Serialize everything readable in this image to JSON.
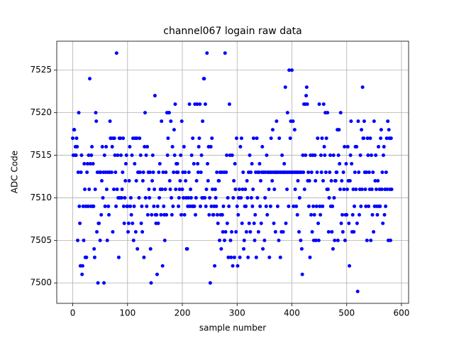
{
  "chart_data": {
    "type": "scatter",
    "title": "channel067 logain raw data",
    "x_label": "sample number",
    "y_label": "ADC Code",
    "color": "#0000ff",
    "grid": true,
    "xlim": [
      -29.2,
      613
    ],
    "ylim": [
      7497.6,
      7528.4
    ],
    "xticks": [
      0,
      100,
      200,
      300,
      400,
      500,
      600
    ],
    "yticks": [
      7500,
      7505,
      7510,
      7515,
      7520,
      7525
    ],
    "x": [
      0,
      1,
      2,
      3,
      4,
      5,
      6,
      7,
      8,
      9,
      10,
      11,
      12,
      13,
      14,
      15,
      16,
      17,
      18,
      19,
      20,
      21,
      22,
      23,
      24,
      25,
      26,
      27,
      28,
      29,
      30,
      31,
      32,
      33,
      34,
      35,
      36,
      37,
      38,
      39,
      40,
      41,
      42,
      43,
      44,
      45,
      46,
      47,
      48,
      49,
      50,
      51,
      52,
      53,
      54,
      55,
      56,
      57,
      58,
      59,
      60,
      61,
      62,
      63,
      64,
      65,
      66,
      67,
      68,
      69,
      70,
      71,
      72,
      73,
      74,
      75,
      76,
      77,
      78,
      79,
      80,
      81,
      82,
      83,
      84,
      85,
      86,
      87,
      88,
      89,
      90,
      91,
      92,
      93,
      94,
      95,
      96,
      97,
      98,
      99,
      100,
      101,
      102,
      103,
      104,
      105,
      106,
      107,
      108,
      109,
      110,
      111,
      112,
      113,
      114,
      115,
      116,
      117,
      118,
      119,
      120,
      121,
      122,
      123,
      124,
      125,
      126,
      127,
      128,
      129,
      130,
      131,
      132,
      133,
      134,
      135,
      136,
      137,
      138,
      139,
      140,
      141,
      142,
      143,
      144,
      145,
      146,
      147,
      148,
      149,
      150,
      151,
      152,
      153,
      154,
      155,
      156,
      157,
      158,
      159,
      160,
      161,
      162,
      163,
      164,
      165,
      166,
      167,
      168,
      169,
      170,
      171,
      172,
      173,
      174,
      175,
      176,
      177,
      178,
      179,
      180,
      181,
      182,
      183,
      184,
      185,
      186,
      187,
      188,
      189,
      190,
      191,
      192,
      193,
      194,
      195,
      196,
      197,
      198,
      199,
      200,
      201,
      202,
      203,
      204,
      205,
      206,
      207,
      208,
      209,
      210,
      211,
      212,
      213,
      214,
      215,
      216,
      217,
      218,
      219,
      220,
      221,
      222,
      223,
      224,
      225,
      226,
      227,
      228,
      229,
      230,
      231,
      232,
      233,
      234,
      235,
      236,
      237,
      238,
      239,
      240,
      241,
      242,
      243,
      244,
      245,
      246,
      247,
      248,
      249,
      250,
      251,
      252,
      253,
      254,
      255,
      256,
      257,
      258,
      259,
      260,
      261,
      262,
      263,
      264,
      265,
      266,
      267,
      268,
      269,
      270,
      271,
      272,
      273,
      274,
      275,
      276,
      277,
      278,
      279,
      280,
      281,
      282,
      283,
      284,
      285,
      286,
      287,
      288,
      289,
      290,
      291,
      292,
      293,
      294,
      295,
      296,
      297,
      298,
      299,
      300,
      301,
      302,
      303,
      304,
      305,
      306,
      307,
      308,
      309,
      310,
      311,
      312,
      313,
      314,
      315,
      316,
      317,
      318,
      319,
      320,
      321,
      322,
      323,
      324,
      325,
      326,
      327,
      328,
      329,
      330,
      331,
      332,
      333,
      334,
      335,
      336,
      337,
      338,
      339,
      340,
      341,
      342,
      343,
      344,
      345,
      346,
      347,
      348,
      349,
      350,
      351,
      352,
      353,
      354,
      355,
      356,
      357,
      358,
      359,
      360,
      361,
      362,
      363,
      364,
      365,
      366,
      367,
      368,
      369,
      370,
      371,
      372,
      373,
      374,
      375,
      376,
      377,
      378,
      379,
      380,
      381,
      382,
      383,
      384,
      385,
      386,
      387,
      388,
      389,
      390,
      391,
      392,
      393,
      394,
      395,
      396,
      397,
      398,
      399,
      400,
      401,
      402,
      403,
      404,
      405,
      406,
      407,
      408,
      409,
      410,
      411,
      412,
      413,
      414,
      415,
      416,
      417,
      418,
      419,
      420,
      421,
      422,
      423,
      424,
      425,
      426,
      427,
      428,
      429,
      430,
      431,
      432,
      433,
      434,
      435,
      436,
      437,
      438,
      439,
      440,
      441,
      442,
      443,
      444,
      445,
      446,
      447,
      448,
      449,
      450,
      451,
      452,
      453,
      454,
      455,
      456,
      457,
      458,
      459,
      460,
      461,
      462,
      463,
      464,
      465,
      466,
      467,
      468,
      469,
      470,
      471,
      472,
      473,
      474,
      475,
      476,
      477,
      478,
      479,
      480,
      481,
      482,
      483,
      484,
      485,
      486,
      487,
      488,
      489,
      490,
      491,
      492,
      493,
      494,
      495,
      496,
      497,
      498,
      499,
      500,
      501,
      502,
      503,
      504,
      505,
      506,
      507,
      508,
      509,
      510,
      511,
      512,
      513,
      514,
      515,
      516,
      517,
      518,
      519,
      520,
      521,
      522,
      523,
      524,
      525,
      526,
      527,
      528,
      529,
      530,
      531,
      532,
      533,
      534,
      535,
      536,
      537,
      538,
      539,
      540,
      541,
      542,
      543,
      544,
      545,
      546,
      547,
      548,
      549,
      550,
      551,
      552,
      553,
      554,
      555,
      556,
      557,
      558,
      559,
      560,
      561,
      562,
      563,
      564,
      565,
      566,
      567,
      568,
      569,
      570,
      571,
      572,
      573,
      574,
      575,
      576,
      577,
      578,
      579,
      580,
      581,
      582
    ],
    "values": [
      7517,
      7515,
      7518,
      7518,
      7515,
      7516,
      7515,
      7517,
      7516,
      7505,
      7513,
      7520,
      7509,
      7507,
      7502,
      7513,
      7515,
      7501,
      7502,
      7509,
      7505,
      7514,
      7511,
      7503,
      7509,
      7503,
      7513,
      7514,
      7509,
      7515,
      7511,
      7524,
      7514,
      7509,
      7515,
      7516,
      7509,
      7514,
      7509,
      7504,
      7503,
      7511,
      7520,
      7519,
      7506,
      7513,
      7500,
      7507,
      7507,
      7513,
      7505,
      7513,
      7508,
      7512,
      7516,
      7510,
      7513,
      7500,
      7515,
      7509,
      7513,
      7516,
      7511,
      7505,
      7513,
      7509,
      7508,
      7513,
      7519,
      7517,
      7517,
      7513,
      7516,
      7506,
      7517,
      7511,
      7517,
      7515,
      7513,
      7509,
      7527,
      7511,
      7515,
      7510,
      7503,
      7517,
      7510,
      7517,
      7515,
      7510,
      7511,
      7513,
      7517,
      7509,
      7507,
      7510,
      7512,
      7514,
      7515,
      7509,
      7509,
      7506,
      7507,
      7512,
      7516,
      7509,
      7510,
      7508,
      7515,
      7507,
      7517,
      7505,
      7509,
      7514,
      7517,
      7506,
      7512,
      7517,
      7504,
      7513,
      7513,
      7510,
      7517,
      7513,
      7515,
      7507,
      7509,
      7506,
      7512,
      7513,
      7503,
      7516,
      7520,
      7510,
      7515,
      7509,
      7516,
      7508,
      7513,
      7511,
      7510,
      7513,
      7504,
      7500,
      7508,
      7512,
      7515,
      7513,
      7509,
      7511,
      7522,
      7508,
      7507,
      7508,
      7501,
      7509,
      7507,
      7513,
      7510,
      7514,
      7511,
      7508,
      7519,
      7511,
      7502,
      7513,
      7509,
      7508,
      7505,
      7511,
      7513,
      7508,
      7520,
      7515,
      7517,
      7520,
      7520,
      7512,
      7511,
      7519,
      7510,
      7508,
      7516,
      7509,
      7513,
      7518,
      7515,
      7521,
      7511,
      7514,
      7513,
      7514,
      7513,
      7509,
      7510,
      7511,
      7512,
      7515,
      7508,
      7519,
      7511,
      7513,
      7510,
      7516,
      7508,
      7513,
      7512,
      7510,
      7504,
      7504,
      7509,
      7510,
      7513,
      7521,
      7509,
      7511,
      7510,
      7515,
      7509,
      7517,
      7509,
      7514,
      7509,
      7521,
      7508,
      7510,
      7512,
      7521,
      7514,
      7513,
      7516,
      7517,
      7521,
      7509,
      7513,
      7515,
      7510,
      7519,
      7510,
      7524,
      7524,
      7510,
      7521,
      7509,
      7511,
      7527,
      7514,
      7512,
      7516,
      7508,
      7510,
      7500,
      7516,
      7509,
      7517,
      7511,
      7508,
      7508,
      7509,
      7502,
      7511,
      7510,
      7509,
      7513,
      7508,
      7507,
      7512,
      7512,
      7505,
      7513,
      7508,
      7504,
      7513,
      7508,
      7506,
      7509,
      7513,
      7505,
      7527,
      7506,
      7513,
      7515,
      7507,
      7510,
      7503,
      7509,
      7521,
      7515,
      7505,
      7503,
      7506,
      7515,
      7502,
      7510,
      7512,
      7503,
      7514,
      7511,
      7506,
      7517,
      7509,
      7502,
      7508,
      7510,
      7511,
      7503,
      7516,
      7510,
      7517,
      7507,
      7511,
      7513,
      7504,
      7505,
      7509,
      7511,
      7509,
      7506,
      7512,
      7510,
      7503,
      7513,
      7507,
      7515,
      7506,
      7513,
      7510,
      7514,
      7509,
      7511,
      7517,
      7507,
      7505,
      7508,
      7513,
      7503,
      7517,
      7510,
      7513,
      7506,
      7513,
      7514,
      7509,
      7512,
      7507,
      7513,
      7516,
      7504,
      7513,
      7513,
      7505,
      7510,
      7513,
      7509,
      7515,
      7508,
      7513,
      7513,
      7511,
      7503,
      7513,
      7509,
      7517,
      7513,
      7512,
      7518,
      7513,
      7507,
      7511,
      7513,
      7506,
      7513,
      7519,
      7513,
      7509,
      7513,
      7505,
      7517,
      7513,
      7503,
      7513,
      7506,
      7515,
      7513,
      7506,
      7513,
      7514,
      7513,
      7523,
      7507,
      7513,
      7511,
      7520,
      7513,
      7509,
      7525,
      7513,
      7517,
      7519,
      7513,
      7525,
      7513,
      7519,
      7509,
      7513,
      7518,
      7511,
      7513,
      7509,
      7513,
      7508,
      7512,
      7513,
      7506,
      7510,
      7513,
      7505,
      7513,
      7504,
      7501,
      7515,
      7513,
      7521,
      7511,
      7521,
      7515,
      7522,
      7523,
      7521,
      7512,
      7513,
      7509,
      7512,
      7503,
      7515,
      7508,
      7513,
      7506,
      7515,
      7509,
      7505,
      7508,
      7515,
      7512,
      7505,
      7509,
      7513,
      7517,
      7507,
      7505,
      7521,
      7509,
      7508,
      7515,
      7513,
      7517,
      7509,
      7512,
      7521,
      7516,
      7515,
      7520,
      7513,
      7517,
      7511,
      7520,
      7511,
      7506,
      7510,
      7513,
      7515,
      7509,
      7512,
      7506,
      7509,
      7504,
      7515,
      7510,
      7505,
      7512,
      7512,
      7513,
      7513,
      7518,
      7505,
      7515,
      7518,
      7514,
      7511,
      7520,
      7507,
      7512,
      7508,
      7506,
      7513,
      7511,
      7516,
      7505,
      7508,
      7514,
      7508,
      7511,
      7516,
      7512,
      7507,
      7502,
      7512,
      7515,
      7519,
      7514,
      7506,
      7508,
      7511,
      7506,
      7509,
      7513,
      7516,
      7511,
      7516,
      7507,
      7499,
      7519,
      7513,
      7508,
      7511,
      7515,
      7509,
      7518,
      7511,
      7523,
      7517,
      7517,
      7519,
      7513,
      7511,
      7509,
      7513,
      7505,
      7517,
      7515,
      7509,
      7513,
      7511,
      7517,
      7505,
      7515,
      7511,
      7508,
      7513,
      7506,
      7519,
      7509,
      7512,
      7515,
      7511,
      7509,
      7508,
      7512,
      7516,
      7509,
      7511,
      7509,
      7517,
      7518,
      7511,
      7513,
      7507,
      7515,
      7516,
      7508,
      7511,
      7509,
      7513,
      7517,
      7511,
      7519,
      7505,
      7518,
      7517,
      7511,
      7505,
      7517,
      7511
    ]
  }
}
